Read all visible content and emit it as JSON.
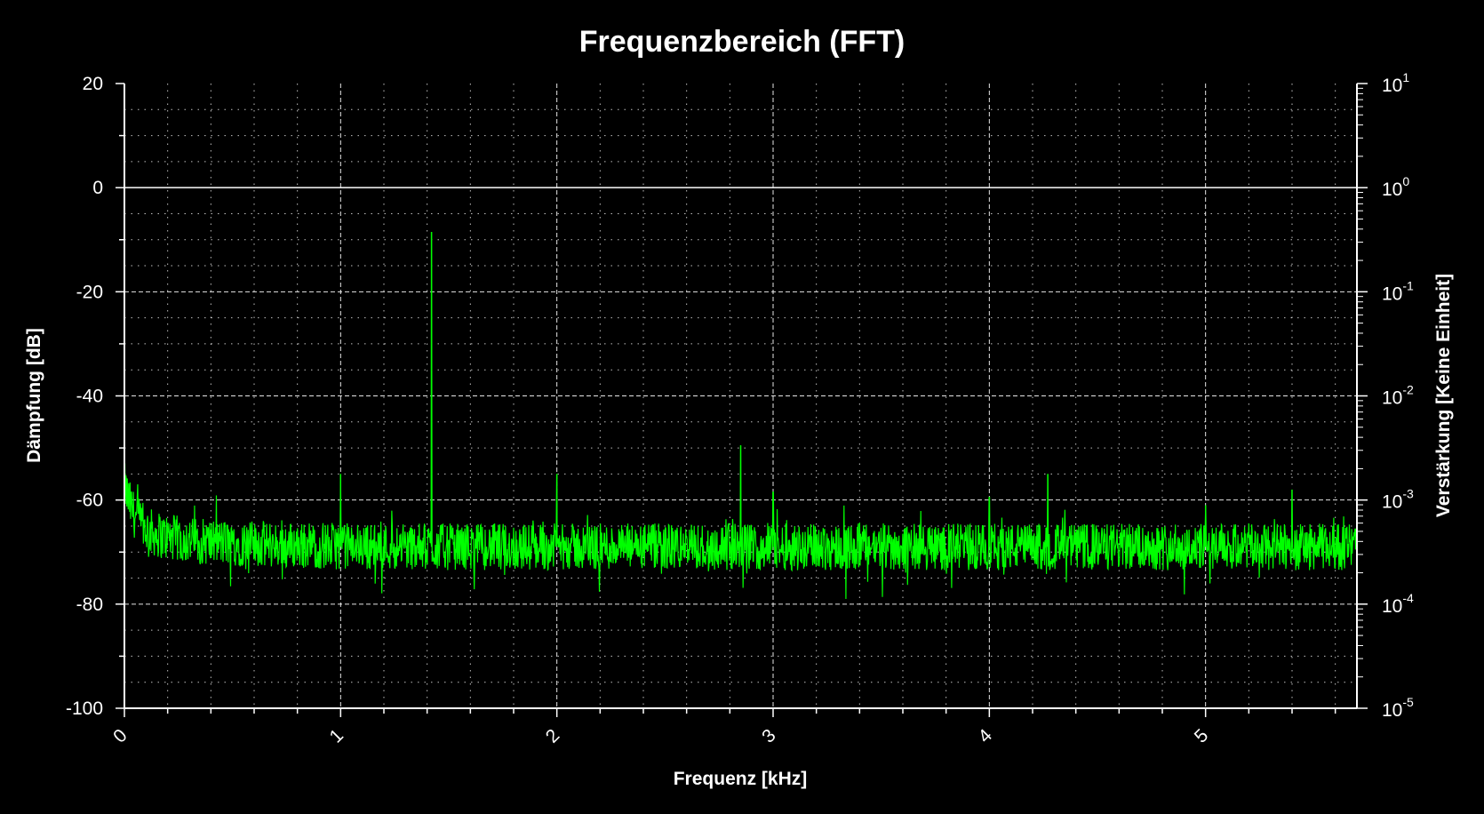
{
  "chart_data": {
    "type": "line",
    "title": "Frequenzbereich (FFT)",
    "xlabel": "Frequenz [kHz]",
    "ylabel": "Dämpfung [dB]",
    "y2label": "Verstärkung [Keine Einheit]",
    "xlim": [
      0,
      5.7
    ],
    "ylim": [
      -100,
      20
    ],
    "y2_scale": "log",
    "y2lim": [
      1e-05,
      10
    ],
    "x_ticks": [
      "0",
      "1",
      "2",
      "3",
      "4",
      "5"
    ],
    "y_ticks": [
      "20",
      "0",
      "-20",
      "-40",
      "-60",
      "-80",
      "-100"
    ],
    "y2_ticks": [
      {
        "base": "10",
        "exp": "1"
      },
      {
        "base": "10",
        "exp": "0"
      },
      {
        "base": "10",
        "exp": "-1"
      },
      {
        "base": "10",
        "exp": "-2"
      },
      {
        "base": "10",
        "exp": "-3"
      },
      {
        "base": "10",
        "exp": "-4"
      },
      {
        "base": "10",
        "exp": "-5"
      }
    ],
    "grid": true,
    "series": [
      {
        "color": "#00ff00",
        "noise_floor_db": -69,
        "peaks": [
          {
            "x": 0.0,
            "y": -55
          },
          {
            "x": 1.0,
            "y": -55
          },
          {
            "x": 1.42,
            "y": -8.5
          },
          {
            "x": 2.0,
            "y": -55
          },
          {
            "x": 2.85,
            "y": -49.5
          },
          {
            "x": 3.0,
            "y": -58.5
          },
          {
            "x": 4.0,
            "y": -59.5
          },
          {
            "x": 4.27,
            "y": -55
          },
          {
            "x": 5.0,
            "y": -61
          },
          {
            "x": 5.4,
            "y": -58
          }
        ]
      }
    ],
    "colors": {
      "background": "#000000",
      "axes": "#ffffff",
      "grid": "#ffffff",
      "series": "#00ff00"
    }
  }
}
